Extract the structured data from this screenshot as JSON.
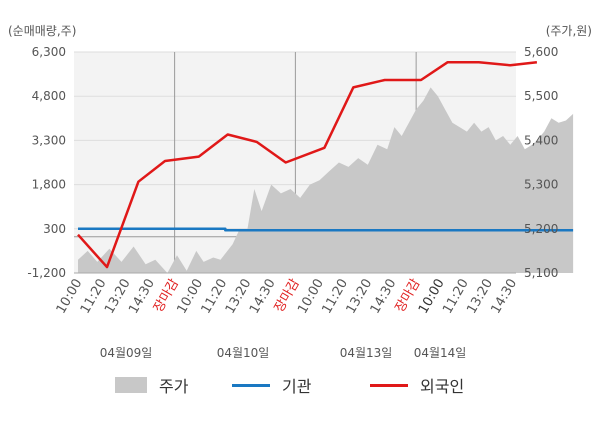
{
  "chart_data": {
    "type": "line",
    "left_axis_unit": "(순매매량,주)",
    "right_axis_unit": "(주가,원)",
    "left_ticks": [
      "6,300",
      "4,800",
      "3,300",
      "1,800",
      "300",
      "-1,200"
    ],
    "right_ticks": [
      "5,600",
      "5,500",
      "5,400",
      "5,300",
      "5,200",
      "5,100"
    ],
    "ylim_left": [
      -1200,
      6300
    ],
    "ylim_right": [
      5100,
      5600
    ],
    "x_tick_labels": [
      "10:00",
      "11:20",
      "13:20",
      "14:30",
      "장마감",
      "10:00",
      "11:20",
      "13:20",
      "14:30",
      "장마감",
      "10:00",
      "11:20",
      "13:20",
      "14:30",
      "장마감",
      "10:00",
      "11:20",
      "13:20",
      "14:30"
    ],
    "date_labels": [
      "04월09일",
      "04월10일",
      "04월13일",
      "04월14일"
    ],
    "grid": true,
    "legend_position": "bottom",
    "series": [
      {
        "name": "주가",
        "kind": "area",
        "axis": "right",
        "color": "#c8c8c8",
        "points": [
          [
            0,
            5130
          ],
          [
            0.4,
            5150
          ],
          [
            0.8,
            5125
          ],
          [
            1.3,
            5155
          ],
          [
            1.8,
            5125
          ],
          [
            2.3,
            5160
          ],
          [
            2.8,
            5120
          ],
          [
            3.2,
            5130
          ],
          [
            3.7,
            5100
          ],
          [
            4.1,
            5140
          ],
          [
            4.5,
            5105
          ],
          [
            4.9,
            5150
          ],
          [
            5.2,
            5125
          ],
          [
            5.6,
            5135
          ],
          [
            5.9,
            5130
          ],
          [
            6.4,
            5165
          ],
          [
            6.7,
            5200
          ],
          [
            7.0,
            5195
          ],
          [
            7.3,
            5290
          ],
          [
            7.6,
            5240
          ],
          [
            8.0,
            5300
          ],
          [
            8.4,
            5280
          ],
          [
            8.8,
            5290
          ],
          [
            9.2,
            5270
          ],
          [
            9.6,
            5300
          ],
          [
            10.0,
            5310
          ],
          [
            10.4,
            5330
          ],
          [
            10.8,
            5350
          ],
          [
            11.2,
            5340
          ],
          [
            11.6,
            5360
          ],
          [
            12.0,
            5345
          ],
          [
            12.4,
            5390
          ],
          [
            12.8,
            5380
          ],
          [
            13.1,
            5430
          ],
          [
            13.4,
            5410
          ],
          [
            13.7,
            5440
          ],
          [
            14.0,
            5470
          ],
          [
            14.3,
            5490
          ],
          [
            14.6,
            5520
          ],
          [
            14.9,
            5500
          ],
          [
            15.2,
            5470
          ],
          [
            15.5,
            5440
          ],
          [
            15.8,
            5430
          ],
          [
            16.1,
            5420
          ],
          [
            16.4,
            5440
          ],
          [
            16.7,
            5420
          ],
          [
            17.0,
            5430
          ],
          [
            17.3,
            5400
          ],
          [
            17.6,
            5410
          ],
          [
            17.9,
            5390
          ],
          [
            18.2,
            5410
          ],
          [
            18.5,
            5380
          ],
          [
            18.8,
            5390
          ],
          [
            19.0,
            5400
          ],
          [
            19.3,
            5420
          ],
          [
            19.6,
            5450
          ],
          [
            19.9,
            5440
          ],
          [
            20.2,
            5445
          ],
          [
            20.5,
            5460
          ]
        ]
      },
      {
        "name": "기관",
        "kind": "line",
        "axis": "left",
        "color": "#1a78c2",
        "points": [
          [
            0,
            300
          ],
          [
            6.1,
            300
          ],
          [
            6.1,
            250
          ],
          [
            20.5,
            250
          ]
        ]
      },
      {
        "name": "외국인",
        "kind": "line",
        "axis": "left",
        "color": "#e01818",
        "points": [
          [
            0,
            100
          ],
          [
            1.2,
            -1000
          ],
          [
            2.5,
            1900
          ],
          [
            3.6,
            2600
          ],
          [
            5.0,
            2750
          ],
          [
            6.2,
            3500
          ],
          [
            7.4,
            3250
          ],
          [
            8.6,
            2550
          ],
          [
            10.2,
            3050
          ],
          [
            11.4,
            5100
          ],
          [
            12.7,
            5350
          ],
          [
            14.2,
            5350
          ],
          [
            15.3,
            5950
          ],
          [
            16.6,
            5950
          ],
          [
            17.9,
            5850
          ],
          [
            19.0,
            5950
          ]
        ]
      }
    ]
  },
  "legend": {
    "stock": "주가",
    "institution": "기관",
    "foreign": "외국인"
  },
  "colors": {
    "area": "#c8c8c8",
    "institution": "#1a78c2",
    "foreign": "#e01818",
    "close_label": "#e02020"
  }
}
